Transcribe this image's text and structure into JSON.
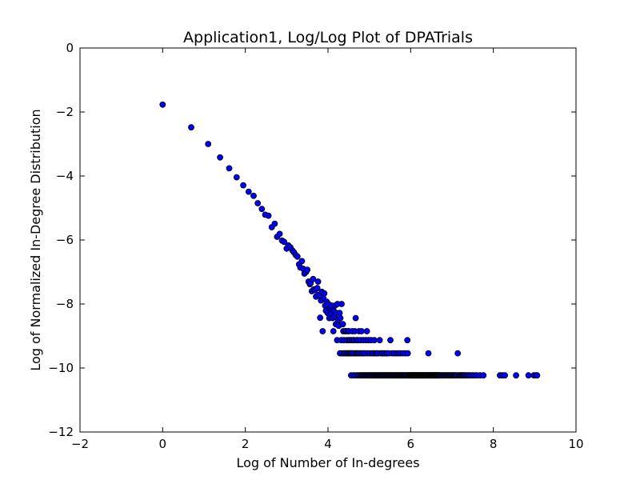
{
  "chart_data": {
    "type": "scatter",
    "title": "Application1, Log/Log Plot of DPATrials",
    "xlabel": "Log of Number of In-degrees",
    "ylabel": "Log of Normalized In-Degree Distribution",
    "xlim": [
      -2,
      10
    ],
    "ylim": [
      -12,
      0
    ],
    "xticks": [
      -2,
      0,
      2,
      4,
      6,
      8,
      10
    ],
    "yticks": [
      -12,
      -10,
      -8,
      -6,
      -4,
      -2,
      0
    ],
    "grid": false,
    "marker_color": "#0000ff",
    "marker_edge_color": "#000000",
    "x": [
      0.0,
      0.69,
      1.1,
      1.39,
      1.61,
      1.79,
      1.95,
      2.08,
      2.2,
      2.3,
      2.4,
      2.48,
      2.56,
      2.64,
      2.71,
      2.77,
      2.83,
      2.89,
      2.94,
      3.0,
      3.04,
      3.09,
      3.14,
      3.18,
      3.22,
      3.26,
      3.3,
      3.33,
      3.37,
      3.4,
      3.43,
      3.47,
      3.5,
      3.53,
      3.56,
      3.58,
      3.61,
      3.64,
      3.66,
      3.69,
      3.71,
      3.74,
      3.76,
      3.78,
      3.81,
      3.83,
      3.85,
      3.87,
      3.89,
      3.91,
      3.93,
      3.95,
      3.97,
      3.99,
      4.01,
      4.03,
      4.04,
      4.06,
      4.08,
      4.09,
      4.11,
      4.13,
      4.14,
      4.16,
      4.17,
      4.19,
      4.2,
      4.22,
      4.23,
      4.25,
      4.26,
      4.28,
      4.29,
      4.3,
      4.32,
      4.33,
      4.34,
      4.36,
      4.37,
      4.38,
      4.39,
      4.41,
      4.42,
      4.43,
      4.44,
      4.45,
      4.47,
      4.48,
      4.49,
      4.5,
      4.51,
      4.52,
      4.53,
      4.54,
      4.55,
      4.56,
      4.57,
      4.58,
      4.59,
      4.6,
      4.61,
      4.62,
      4.63,
      4.64,
      4.65,
      4.66,
      4.67,
      4.68,
      4.69,
      4.7,
      4.71,
      4.72,
      4.73,
      4.74,
      4.75,
      4.76,
      4.77,
      4.78,
      4.79,
      4.8,
      4.81,
      4.82,
      4.83,
      4.84,
      4.85,
      4.86,
      4.87,
      4.88,
      4.89,
      4.9,
      4.91,
      4.92,
      4.93,
      4.94,
      4.95,
      4.96,
      4.97,
      4.98,
      4.99,
      5.0,
      5.01,
      5.02,
      5.03,
      5.04,
      5.05,
      5.06,
      5.07,
      5.08,
      5.09,
      5.1,
      5.11,
      5.12,
      5.13,
      5.14,
      5.15,
      5.16,
      5.17,
      5.18,
      5.19,
      5.2,
      5.21,
      5.22,
      5.23,
      5.24,
      5.25,
      5.26,
      5.27,
      5.28,
      5.29,
      5.3,
      5.31,
      5.32,
      5.33,
      5.34,
      5.35,
      5.36,
      5.37,
      5.38,
      5.39,
      5.4,
      5.41,
      5.42,
      5.43,
      5.44,
      5.45,
      5.46,
      5.47,
      5.48,
      5.49,
      5.5,
      5.51,
      5.52,
      5.53,
      5.54,
      5.55,
      5.56,
      5.57,
      5.58,
      5.59,
      5.6,
      5.61,
      5.62,
      5.63,
      5.64,
      5.65,
      5.66,
      5.67,
      5.68,
      5.69,
      5.7,
      5.71,
      5.72,
      5.73,
      5.74,
      5.75,
      5.76,
      5.77,
      5.78,
      5.79,
      5.8,
      5.81,
      5.82,
      5.83,
      5.84,
      5.85,
      5.86,
      5.87,
      5.88,
      5.89,
      5.9,
      5.91,
      5.92,
      5.93,
      5.94,
      5.95,
      5.96,
      5.97,
      5.98,
      5.99,
      6.0,
      6.01,
      6.02,
      6.03,
      6.04,
      6.05,
      6.06,
      6.07,
      6.08,
      6.09,
      6.1,
      6.11,
      6.12,
      6.13,
      6.14,
      6.15,
      6.16,
      6.17,
      6.18,
      6.19,
      6.2,
      6.21,
      6.22,
      6.23,
      6.24,
      6.25,
      6.26,
      6.27,
      6.28,
      6.29,
      6.3,
      6.31,
      6.32,
      6.33,
      6.34,
      6.35,
      6.36,
      6.37,
      6.38,
      6.39,
      6.4,
      6.41,
      6.42,
      6.43,
      6.44,
      6.45,
      6.46,
      6.47,
      6.48,
      6.49,
      6.5,
      6.51,
      6.52,
      6.53,
      6.54,
      6.55,
      6.56,
      6.57,
      6.58,
      6.59,
      6.6,
      6.61,
      6.62,
      6.63,
      6.64,
      6.65,
      6.66,
      6.67,
      6.68,
      6.69,
      6.7,
      6.72,
      6.74,
      6.76,
      6.78,
      6.8,
      6.82,
      6.84,
      6.86,
      6.88,
      6.9,
      6.92,
      6.94,
      6.96,
      6.98,
      7.0,
      7.02,
      7.04,
      7.06,
      7.08,
      7.1,
      7.12,
      7.14,
      7.16,
      7.18,
      7.2,
      7.22,
      7.24,
      7.26,
      7.28,
      7.3,
      7.33,
      7.36,
      7.39,
      7.42,
      7.46,
      7.5,
      7.55,
      7.6,
      7.68,
      7.76,
      8.16,
      8.22,
      8.28,
      8.55,
      8.85,
      8.98,
      9.03,
      9.06
    ],
    "y": [
      -1.77,
      -2.48,
      -3.0,
      -3.42,
      -3.76,
      -4.04,
      -4.29,
      -4.49,
      -4.62,
      -4.85,
      -5.03,
      -5.21,
      -5.24,
      -5.6,
      -5.49,
      -5.9,
      -5.81,
      -6.02,
      -6.06,
      -6.27,
      -6.17,
      -6.23,
      -6.33,
      -6.39,
      -6.47,
      -6.52,
      -6.76,
      -6.86,
      -6.66,
      -6.9,
      -7.05,
      -7.0,
      -6.93,
      -7.3,
      -7.38,
      -7.35,
      -7.6,
      -7.22,
      -7.54,
      -7.57,
      -7.77,
      -7.5,
      -7.3,
      -7.72,
      -8.43,
      -7.89,
      -7.62,
      -8.85,
      -7.82,
      -7.67,
      -8.05,
      -8.21,
      -7.93,
      -8.28,
      -8.0,
      -8.44,
      -8.35,
      -8.13,
      -8.28,
      -8.05,
      -8.44,
      -8.85,
      -8.22,
      -8.39,
      -8.05,
      -8.63,
      -8.28,
      -9.13,
      -8.0,
      -8.5,
      -8.68,
      -8.28,
      -9.54,
      -8.44,
      -9.13,
      -8.0,
      -9.54,
      -8.63,
      -8.85,
      -9.13,
      -9.54,
      -8.85,
      -9.54,
      -9.54,
      -8.85,
      -9.13,
      -9.54,
      -8.85,
      -9.54,
      -9.13,
      -8.85,
      -9.54,
      -9.13,
      -9.54,
      -9.54,
      -10.23,
      -9.13,
      -9.54,
      -8.85,
      -9.54,
      -9.13,
      -10.23,
      -9.13,
      -9.54,
      -8.85,
      -10.23,
      -8.44,
      -9.54,
      -9.13,
      -9.54,
      -10.23,
      -9.13,
      -9.54,
      -10.23,
      -8.85,
      -9.54,
      -10.23,
      -9.13,
      -9.54,
      -10.23,
      -8.85,
      -10.23,
      -9.54,
      -10.23,
      -9.13,
      -10.23,
      -9.54,
      -10.23,
      -10.23,
      -9.54,
      -10.23,
      -9.13,
      -10.23,
      -8.85,
      -10.23,
      -9.54,
      -10.23,
      -9.13,
      -10.23,
      -10.23,
      -9.54,
      -10.23,
      -10.23,
      -9.13,
      -10.23,
      -10.23,
      -9.54,
      -10.23,
      -10.23,
      -9.54,
      -10.23,
      -9.13,
      -10.23,
      -10.23,
      -9.54,
      -10.23,
      -10.23,
      -9.54,
      -10.23,
      -10.23,
      -9.54,
      -10.23,
      -10.23,
      -10.23,
      -9.13,
      -10.23,
      -10.23,
      -9.54,
      -10.23,
      -10.23,
      -9.54,
      -10.23,
      -10.23,
      -10.23,
      -9.54,
      -10.23,
      -10.23,
      -10.23,
      -9.54,
      -10.23,
      -10.23,
      -10.23,
      -9.54,
      -10.23,
      -10.23,
      -10.23,
      -9.54,
      -10.23,
      -10.23,
      -10.23,
      -9.13,
      -10.23,
      -10.23,
      -10.23,
      -9.54,
      -10.23,
      -10.23,
      -10.23,
      -10.23,
      -9.54,
      -10.23,
      -10.23,
      -10.23,
      -10.23,
      -9.54,
      -10.23,
      -10.23,
      -10.23,
      -10.23,
      -9.54,
      -10.23,
      -10.23,
      -10.23,
      -10.23,
      -9.54,
      -10.23,
      -10.23,
      -10.23,
      -10.23,
      -10.23,
      -9.54,
      -10.23,
      -10.23,
      -10.23,
      -10.23,
      -10.23,
      -9.54,
      -10.23,
      -10.23,
      -10.23,
      -10.23,
      -9.13,
      -9.54,
      -10.23,
      -10.23,
      -10.23,
      -10.23,
      -10.23,
      -10.23,
      -10.23,
      -10.23,
      -10.23,
      -10.23,
      -10.23,
      -10.23,
      -10.23,
      -10.23,
      -10.23,
      -10.23,
      -10.23,
      -10.23,
      -10.23,
      -10.23,
      -10.23,
      -10.23,
      -10.23,
      -10.23,
      -10.23,
      -10.23,
      -10.23,
      -10.23,
      -10.23,
      -10.23,
      -10.23,
      -10.23,
      -10.23,
      -10.23,
      -10.23,
      -10.23,
      -10.23,
      -10.23,
      -10.23,
      -10.23,
      -10.23,
      -10.23,
      -10.23,
      -10.23,
      -10.23,
      -10.23,
      -10.23,
      -10.23,
      -10.23,
      -9.54,
      -10.23,
      -10.23,
      -10.23,
      -10.23,
      -10.23,
      -10.23,
      -10.23,
      -10.23,
      -10.23,
      -10.23,
      -10.23,
      -10.23,
      -10.23,
      -10.23,
      -10.23,
      -10.23,
      -10.23,
      -10.23,
      -10.23,
      -10.23,
      -10.23,
      -10.23,
      -10.23,
      -10.23,
      -10.23,
      -10.23,
      -10.23,
      -10.23,
      -10.23,
      -10.23,
      -10.23,
      -10.23,
      -10.23,
      -10.23,
      -10.23,
      -10.23,
      -10.23,
      -10.23,
      -10.23,
      -10.23,
      -10.23,
      -10.23,
      -10.23,
      -10.23,
      -10.23,
      -10.23,
      -10.23,
      -10.23,
      -9.54,
      -10.23,
      -10.23,
      -10.23,
      -10.23,
      -10.23,
      -10.23,
      -10.23,
      -10.23,
      -10.23,
      -10.23,
      -10.23,
      -10.23,
      -10.23,
      -10.23,
      -10.23,
      -10.23,
      -10.23,
      -10.23,
      -10.23,
      -10.23,
      -10.23,
      -10.23,
      -10.23,
      -10.23,
      -10.23,
      -10.23
    ]
  }
}
